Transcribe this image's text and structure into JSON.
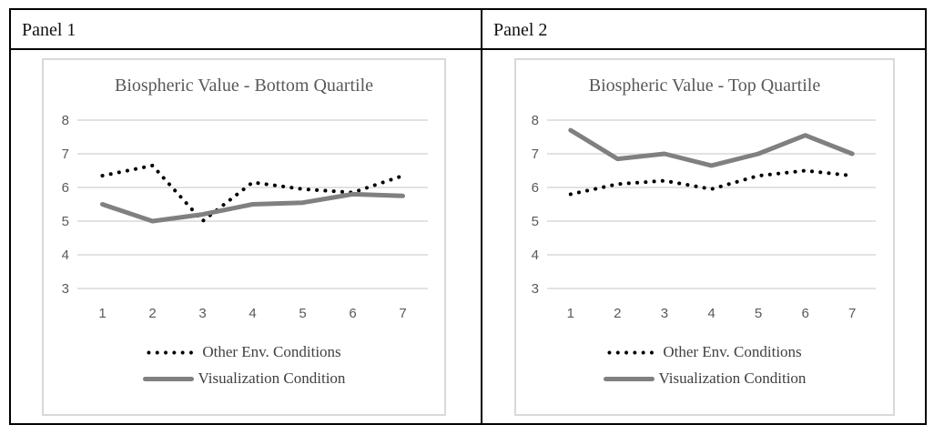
{
  "table": {
    "panel_headers": [
      "Panel 1",
      "Panel 2"
    ]
  },
  "chart_data": [
    {
      "type": "line",
      "title": "Biospheric Value - Bottom Quartile",
      "xlabel": "",
      "ylabel": "",
      "x": [
        1,
        2,
        3,
        4,
        5,
        6,
        7
      ],
      "xticks": [
        "1",
        "2",
        "3",
        "4",
        "5",
        "6",
        "7"
      ],
      "yticks": [
        8,
        7,
        6,
        5,
        4,
        3
      ],
      "ylim": [
        3,
        8
      ],
      "grid": true,
      "legend_position": "bottom",
      "series": [
        {
          "name": "Other Env. Conditions",
          "style": "dotted",
          "color": "#000000",
          "values": [
            6.35,
            6.65,
            5.0,
            6.15,
            5.95,
            5.85,
            6.35
          ]
        },
        {
          "name": "Visualization Condition",
          "style": "solid",
          "color": "#808080",
          "values": [
            5.5,
            5.0,
            5.2,
            5.5,
            5.55,
            5.8,
            5.75
          ]
        }
      ]
    },
    {
      "type": "line",
      "title": "Biospheric Value - Top Quartile",
      "xlabel": "",
      "ylabel": "",
      "x": [
        1,
        2,
        3,
        4,
        5,
        6,
        7
      ],
      "xticks": [
        "1",
        "2",
        "3",
        "4",
        "5",
        "6",
        "7"
      ],
      "yticks": [
        8,
        7,
        6,
        5,
        4,
        3
      ],
      "ylim": [
        3,
        8
      ],
      "grid": true,
      "legend_position": "bottom",
      "series": [
        {
          "name": "Other Env. Conditions",
          "style": "dotted",
          "color": "#000000",
          "values": [
            5.8,
            6.1,
            6.2,
            5.95,
            6.35,
            6.5,
            6.35
          ]
        },
        {
          "name": "Visualization Condition",
          "style": "solid",
          "color": "#808080",
          "values": [
            7.7,
            6.85,
            7.0,
            6.65,
            7.0,
            7.55,
            7.0
          ]
        }
      ]
    }
  ],
  "colors": {
    "table_border": "#000000",
    "chart_border": "#d9d9d9",
    "gridline": "#d9d9d9",
    "axis_text": "#595959",
    "title_text": "#595959",
    "legend_text": "#404040",
    "background": "#ffffff"
  }
}
